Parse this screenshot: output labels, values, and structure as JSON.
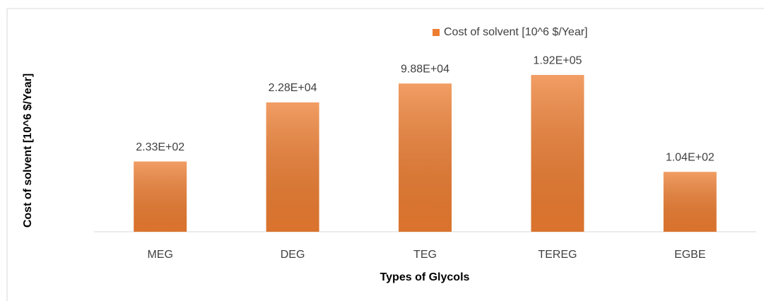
{
  "chart_data": {
    "type": "bar",
    "x_label": "Types of Glycols",
    "y_label": "Cost of solvent [10^6 $/Year]",
    "categories": [
      "MEG",
      "DEG",
      "TEG",
      "TEREG",
      "EGBE"
    ],
    "series": [
      {
        "name": "Cost of solvent [10^6 $/Year]",
        "color": "#ed7d31",
        "values": [
          233,
          22800,
          98800,
          192000,
          104
        ],
        "value_labels": [
          "2.33E+02",
          "2.28E+04",
          "9.88E+04",
          "1.92E+05",
          "1.04E+02"
        ]
      }
    ],
    "ylim": [
      1,
      1000000
    ],
    "log_scale": true,
    "legend": "top"
  }
}
